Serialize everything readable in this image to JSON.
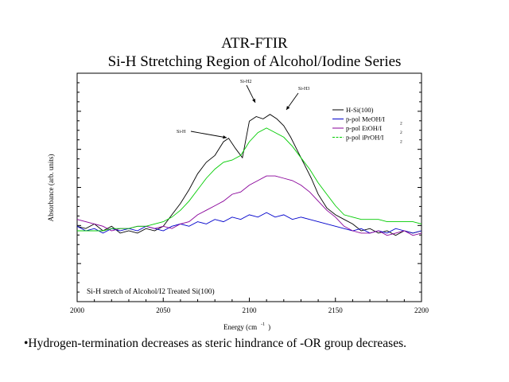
{
  "slide": {
    "title_line1": "ATR-FTIR",
    "title_line2": "Si-H Stretching Region of Alcohol/Iodine Series",
    "bullet": "•Hydrogen-termination decreases as steric hindrance of -OR group decreases."
  },
  "chart_data": {
    "type": "line",
    "xlabel": "Energy (cm",
    "xlabel_sup": "-1",
    "xlabel_close": ")",
    "ylabel": "Absorbance (arb. units)",
    "xlim": [
      2000,
      2200
    ],
    "ylim": [
      0,
      1
    ],
    "x_ticks": [
      2000,
      2050,
      2100,
      2150,
      2200
    ],
    "grid": false,
    "legend_position": "top-right",
    "inner_label": "Si-H stretch of Alcohol/I2 Treated Si(100)",
    "annotations": [
      {
        "text": "Si-H",
        "x": 2088,
        "y": 0.715
      },
      {
        "text": "Si-H2",
        "x": 2103,
        "y": 0.872
      },
      {
        "text": "Si-H3",
        "x": 2122,
        "y": 0.85
      }
    ],
    "series": [
      {
        "name": "H-Si(100)",
        "color": "#000000",
        "subscript": "",
        "x": [
          2000,
          2005,
          2010,
          2015,
          2020,
          2025,
          2030,
          2035,
          2040,
          2045,
          2050,
          2055,
          2060,
          2065,
          2070,
          2075,
          2080,
          2085,
          2088,
          2092,
          2096,
          2100,
          2104,
          2108,
          2112,
          2116,
          2120,
          2124,
          2128,
          2132,
          2136,
          2140,
          2145,
          2150,
          2155,
          2160,
          2165,
          2170,
          2175,
          2180,
          2185,
          2190,
          2195,
          2200
        ],
        "y": [
          0.33,
          0.32,
          0.34,
          0.31,
          0.33,
          0.3,
          0.31,
          0.3,
          0.32,
          0.31,
          0.33,
          0.38,
          0.43,
          0.49,
          0.56,
          0.61,
          0.64,
          0.7,
          0.715,
          0.67,
          0.63,
          0.79,
          0.81,
          0.8,
          0.82,
          0.8,
          0.77,
          0.72,
          0.66,
          0.6,
          0.54,
          0.47,
          0.41,
          0.38,
          0.36,
          0.34,
          0.31,
          0.32,
          0.3,
          0.31,
          0.29,
          0.31,
          0.3,
          0.31
        ]
      },
      {
        "name": "p-pol MeOH/I",
        "color": "#0000cc",
        "subscript": "2",
        "x": [
          2000,
          2005,
          2010,
          2015,
          2020,
          2025,
          2030,
          2035,
          2040,
          2045,
          2050,
          2055,
          2060,
          2065,
          2070,
          2075,
          2080,
          2085,
          2090,
          2095,
          2100,
          2105,
          2110,
          2115,
          2120,
          2125,
          2130,
          2135,
          2140,
          2145,
          2150,
          2155,
          2160,
          2165,
          2170,
          2175,
          2180,
          2185,
          2190,
          2195,
          2200
        ],
        "y": [
          0.33,
          0.31,
          0.32,
          0.3,
          0.32,
          0.31,
          0.32,
          0.31,
          0.33,
          0.32,
          0.31,
          0.33,
          0.34,
          0.33,
          0.35,
          0.34,
          0.36,
          0.35,
          0.37,
          0.36,
          0.38,
          0.37,
          0.39,
          0.37,
          0.38,
          0.36,
          0.37,
          0.36,
          0.35,
          0.34,
          0.33,
          0.32,
          0.31,
          0.32,
          0.3,
          0.31,
          0.3,
          0.32,
          0.31,
          0.3,
          0.31
        ]
      },
      {
        "name": "p-pol EtOH/I",
        "color": "#880099",
        "subscript": "2",
        "x": [
          2000,
          2005,
          2010,
          2015,
          2020,
          2025,
          2030,
          2035,
          2040,
          2045,
          2050,
          2055,
          2060,
          2065,
          2070,
          2075,
          2080,
          2085,
          2090,
          2095,
          2100,
          2105,
          2110,
          2115,
          2120,
          2125,
          2130,
          2135,
          2140,
          2145,
          2150,
          2155,
          2160,
          2165,
          2170,
          2175,
          2180,
          2185,
          2190,
          2195,
          2200
        ],
        "y": [
          0.36,
          0.35,
          0.34,
          0.33,
          0.31,
          0.32,
          0.32,
          0.33,
          0.33,
          0.32,
          0.33,
          0.32,
          0.34,
          0.35,
          0.38,
          0.4,
          0.42,
          0.44,
          0.47,
          0.48,
          0.51,
          0.53,
          0.55,
          0.55,
          0.54,
          0.53,
          0.51,
          0.48,
          0.44,
          0.4,
          0.37,
          0.33,
          0.31,
          0.3,
          0.3,
          0.31,
          0.29,
          0.3,
          0.31,
          0.29,
          0.3
        ]
      },
      {
        "name": "p-pol iPrOH/I",
        "color": "#00cc00",
        "subscript": "2",
        "x": [
          2000,
          2005,
          2010,
          2015,
          2020,
          2025,
          2030,
          2035,
          2040,
          2045,
          2050,
          2055,
          2060,
          2065,
          2070,
          2075,
          2080,
          2085,
          2090,
          2095,
          2100,
          2105,
          2110,
          2115,
          2120,
          2125,
          2130,
          2135,
          2140,
          2145,
          2150,
          2155,
          2160,
          2165,
          2170,
          2175,
          2180,
          2185,
          2190,
          2195,
          2200
        ],
        "y": [
          0.31,
          0.31,
          0.31,
          0.31,
          0.32,
          0.32,
          0.32,
          0.33,
          0.33,
          0.34,
          0.35,
          0.37,
          0.4,
          0.44,
          0.49,
          0.54,
          0.58,
          0.61,
          0.62,
          0.64,
          0.7,
          0.74,
          0.76,
          0.74,
          0.72,
          0.68,
          0.63,
          0.58,
          0.52,
          0.47,
          0.42,
          0.38,
          0.37,
          0.36,
          0.36,
          0.36,
          0.35,
          0.35,
          0.35,
          0.35,
          0.34
        ]
      }
    ]
  }
}
